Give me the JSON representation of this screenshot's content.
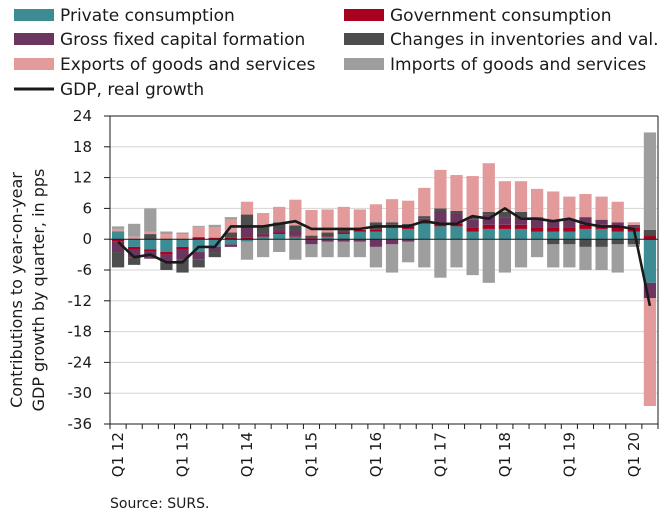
{
  "source": "Source: SURS.",
  "chart_data": {
    "type": "bar",
    "stacked": true,
    "ylabel_lines": [
      "Contributions to year-on-year",
      "GDP growth by quarter, in pps"
    ],
    "ylim": [
      -36,
      24
    ],
    "yticks": [
      24,
      18,
      12,
      6,
      0,
      -6,
      -12,
      -18,
      -24,
      -30,
      -36
    ],
    "x_tick_labels": [
      {
        "label": "Q1 12",
        "index": 0
      },
      {
        "label": "Q1 13",
        "index": 4
      },
      {
        "label": "Q1 14",
        "index": 8
      },
      {
        "label": "Q1 15",
        "index": 12
      },
      {
        "label": "Q1 16",
        "index": 16
      },
      {
        "label": "Q1 17",
        "index": 20
      },
      {
        "label": "Q1 18",
        "index": 24
      },
      {
        "label": "Q1 19",
        "index": 28
      },
      {
        "label": "Q1 20",
        "index": 32
      }
    ],
    "categories": [
      "Q1 12",
      "Q2 12",
      "Q3 12",
      "Q4 12",
      "Q1 13",
      "Q2 13",
      "Q3 13",
      "Q4 13",
      "Q1 14",
      "Q2 14",
      "Q3 14",
      "Q4 14",
      "Q1 15",
      "Q2 15",
      "Q3 15",
      "Q4 15",
      "Q1 16",
      "Q2 16",
      "Q3 16",
      "Q4 16",
      "Q1 17",
      "Q2 17",
      "Q3 17",
      "Q4 17",
      "Q1 18",
      "Q2 18",
      "Q3 18",
      "Q4 18",
      "Q1 19",
      "Q2 19",
      "Q3 19",
      "Q4 19",
      "Q1 20",
      "Q2 20"
    ],
    "series": [
      {
        "name": "Private consumption",
        "color": "#3d8c93",
        "kind": "bar",
        "values": [
          1.5,
          -1.5,
          -2.0,
          -2.5,
          -1.5,
          -2.5,
          -1.5,
          -1.0,
          -0.5,
          0.5,
          1.0,
          0.5,
          0.0,
          0.5,
          1.0,
          1.5,
          1.5,
          2.5,
          2.0,
          3.0,
          2.5,
          2.5,
          1.5,
          2.0,
          2.0,
          2.0,
          1.5,
          1.5,
          1.5,
          2.0,
          2.0,
          1.5,
          1.5,
          -8.5
        ]
      },
      {
        "name": "Government consumption",
        "color": "#a8001e",
        "kind": "bar",
        "values": [
          -0.5,
          -0.5,
          -0.3,
          -0.5,
          -0.5,
          0.4,
          0.3,
          0.3,
          0.3,
          0.3,
          0.3,
          0.2,
          0.2,
          0.3,
          0.3,
          0.3,
          0.3,
          0.3,
          0.5,
          0.5,
          0.5,
          0.5,
          0.8,
          0.8,
          0.8,
          0.8,
          0.8,
          0.8,
          0.8,
          0.8,
          0.8,
          0.8,
          0.8,
          0.8
        ]
      },
      {
        "name": "Gross fixed capital formation",
        "color": "#6b3560",
        "kind": "bar",
        "values": [
          -2.0,
          -1.5,
          -1.5,
          -1.5,
          -2.0,
          -1.5,
          -1.0,
          -0.5,
          2.0,
          0.3,
          0.5,
          1.0,
          -1.0,
          -0.5,
          -0.5,
          -0.5,
          -1.5,
          -1.0,
          -0.5,
          0.5,
          2.5,
          2.0,
          1.5,
          2.0,
          1.5,
          1.5,
          1.5,
          1.5,
          1.5,
          1.5,
          1.0,
          1.0,
          0.5,
          -3.0
        ]
      },
      {
        "name": "Changes in inventories and val.",
        "color": "#4d4d4d",
        "kind": "bar",
        "values": [
          -3.0,
          -1.5,
          1.0,
          -1.5,
          -2.5,
          -1.5,
          -1.0,
          1.0,
          2.5,
          1.5,
          1.5,
          1.0,
          0.5,
          0.5,
          0.5,
          0.0,
          1.5,
          0.5,
          0.5,
          0.5,
          0.5,
          0.5,
          0.5,
          0.5,
          1.0,
          1.0,
          0.5,
          -1.0,
          -1.0,
          -1.5,
          -1.5,
          -1.0,
          -1.0,
          1.0
        ]
      },
      {
        "name": "Exports of goods and services",
        "color": "#e39a9a",
        "kind": "bar",
        "values": [
          0.5,
          0.5,
          0.5,
          1.0,
          1.0,
          2.0,
          2.0,
          2.5,
          2.5,
          2.5,
          3.0,
          5.0,
          5.0,
          4.5,
          4.5,
          4.0,
          3.5,
          4.5,
          4.5,
          5.5,
          7.5,
          7.0,
          8.0,
          9.5,
          6.0,
          6.0,
          5.5,
          5.5,
          4.5,
          4.5,
          4.5,
          4.0,
          0.5,
          -21.0
        ]
      },
      {
        "name": "Imports of goods and services",
        "color": "#9e9e9e",
        "kind": "bar",
        "values": [
          0.5,
          2.5,
          4.5,
          0.5,
          0.3,
          0.2,
          0.5,
          0.5,
          -3.5,
          -3.5,
          -2.5,
          -4.0,
          -2.5,
          -3.0,
          -3.0,
          -3.0,
          -4.0,
          -5.5,
          -4.0,
          -5.5,
          -7.5,
          -5.5,
          -7.0,
          -8.5,
          -6.5,
          -5.5,
          -3.5,
          -4.5,
          -4.5,
          -4.5,
          -4.5,
          -5.5,
          -0.5,
          19.0
        ]
      },
      {
        "name": "GDP, real growth",
        "color": "#1a1a1a",
        "kind": "line",
        "values": [
          -0.5,
          -3.5,
          -3.0,
          -4.5,
          -4.5,
          -1.5,
          -1.5,
          2.5,
          2.5,
          2.5,
          3.0,
          3.5,
          2.0,
          2.0,
          2.0,
          2.0,
          2.5,
          2.5,
          2.5,
          3.5,
          3.0,
          3.0,
          4.5,
          4.0,
          6.0,
          4.0,
          4.0,
          3.5,
          4.0,
          3.0,
          2.5,
          2.5,
          2.0,
          -13.0
        ]
      }
    ]
  }
}
